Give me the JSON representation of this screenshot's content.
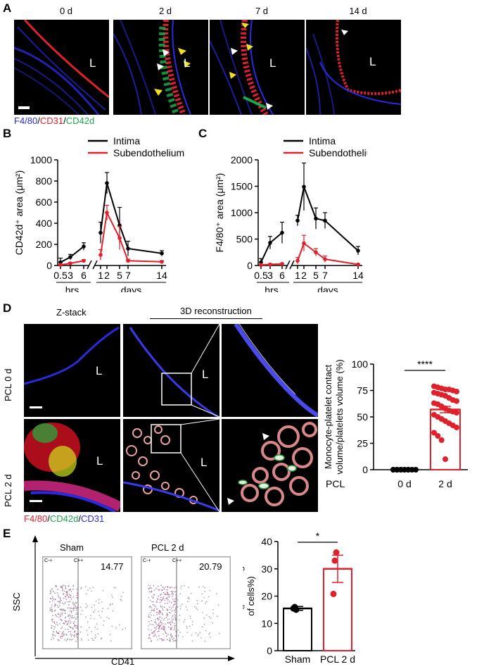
{
  "panels": {
    "A": "A",
    "B": "B",
    "C": "C",
    "D": "D",
    "E": "E"
  },
  "panelA": {
    "timepoints": [
      "0 d",
      "2 d",
      "7 d",
      "14 d"
    ],
    "lumen_label": "L",
    "stain": {
      "f480": "F4/80",
      "sep1": "/",
      "cd31": "CD31",
      "sep2": "/",
      "cd42d": "CD42d"
    },
    "colors": {
      "f480": "#2a2adf",
      "cd31": "#e0202a",
      "cd42d": "#1aa84a"
    }
  },
  "panelD": {
    "zstack_label": "Z-stack",
    "recon_label": "3D reconstruction",
    "row_labels": [
      "PCL 0 d",
      "PCL 2 d"
    ],
    "lumen_label": "L",
    "stain": {
      "f480": "F4/80",
      "sep1": "/",
      "cd42d": "CD42d",
      "sep2": "/",
      "cd31": "CD31"
    }
  },
  "panelE": {
    "flow_titles": [
      "Sham",
      "PCL 2 d"
    ],
    "gate_left": "C-+",
    "gate_right": "C++",
    "flow_values": [
      "14.77",
      "20.79"
    ],
    "y_axis": "SSC",
    "x_axis": "CD41"
  },
  "chart_data": [
    {
      "type": "line",
      "id": "B",
      "ylabel": "CD42d⁺ area (μm²)",
      "ylim": [
        0,
        1000
      ],
      "yticks": [
        0,
        200,
        400,
        600,
        800,
        1000
      ],
      "x_tick_labels_hrs": [
        "0.5",
        "3",
        "6"
      ],
      "x_tick_labels_days": [
        "1",
        "2",
        "5",
        "7",
        "14"
      ],
      "group_labels": [
        "hrs",
        "days"
      ],
      "legend": [
        "Intima",
        "Subendothelium"
      ],
      "legend_placement": "top-right",
      "series": [
        {
          "name": "Intima",
          "color": "#000000",
          "hrs": [
            {
              "x": "0.5",
              "y": 30,
              "err": 40
            },
            {
              "x": "3",
              "y": 80,
              "err": 25
            },
            {
              "x": "6",
              "y": 180,
              "err": 35
            }
          ],
          "days": [
            {
              "x": "1",
              "y": 310,
              "err": 100
            },
            {
              "x": "2",
              "y": 780,
              "err": 100
            },
            {
              "x": "5",
              "y": 380,
              "err": 170
            },
            {
              "x": "7",
              "y": 160,
              "err": 70
            },
            {
              "x": "14",
              "y": 115,
              "err": 25
            }
          ]
        },
        {
          "name": "Subendothelium",
          "color": "#e0202a",
          "hrs": [
            {
              "x": "0.5",
              "y": 5,
              "err": 5
            },
            {
              "x": "3",
              "y": 20,
              "err": 8
            },
            {
              "x": "6",
              "y": 45,
              "err": 10
            }
          ],
          "days": [
            {
              "x": "1",
              "y": 100,
              "err": 50
            },
            {
              "x": "2",
              "y": 500,
              "err": 70
            },
            {
              "x": "5",
              "y": 260,
              "err": 110
            },
            {
              "x": "7",
              "y": 45,
              "err": 15
            },
            {
              "x": "14",
              "y": 35,
              "err": 10
            }
          ]
        }
      ]
    },
    {
      "type": "line",
      "id": "C",
      "ylabel": "F4/80⁺ area (μm²)",
      "ylim": [
        0,
        2000
      ],
      "yticks": [
        0,
        500,
        1000,
        1500,
        2000
      ],
      "x_tick_labels_hrs": [
        "0.5",
        "3",
        "6"
      ],
      "x_tick_labels_days": [
        "1",
        "2",
        "5",
        "7",
        "14"
      ],
      "group_labels": [
        "hrs",
        "days"
      ],
      "legend": [
        "Intima",
        "Subendothelium"
      ],
      "legend_placement": "top-right",
      "series": [
        {
          "name": "Intima",
          "color": "#000000",
          "hrs": [
            {
              "x": "0.5",
              "y": 60,
              "err": 70
            },
            {
              "x": "3",
              "y": 430,
              "err": 120
            },
            {
              "x": "6",
              "y": 620,
              "err": 200
            }
          ],
          "days": [
            {
              "x": "1",
              "y": 850,
              "err": 100
            },
            {
              "x": "2",
              "y": 1490,
              "err": 450
            },
            {
              "x": "5",
              "y": 890,
              "err": 200
            },
            {
              "x": "7",
              "y": 850,
              "err": 150
            },
            {
              "x": "14",
              "y": 280,
              "err": 80
            }
          ]
        },
        {
          "name": "Subendothelium",
          "color": "#e0202a",
          "hrs": [
            {
              "x": "0.5",
              "y": 10,
              "err": 8
            },
            {
              "x": "3",
              "y": 20,
              "err": 10
            },
            {
              "x": "6",
              "y": 30,
              "err": 10
            }
          ],
          "days": [
            {
              "x": "1",
              "y": 90,
              "err": 60
            },
            {
              "x": "2",
              "y": 420,
              "err": 150
            },
            {
              "x": "5",
              "y": 250,
              "err": 70
            },
            {
              "x": "7",
              "y": 120,
              "err": 60
            },
            {
              "x": "14",
              "y": 20,
              "err": 10
            }
          ]
        }
      ]
    },
    {
      "type": "bar",
      "id": "D",
      "ylabel": "Monocyte-platelet contact\nvolume/platelets volume  (%)",
      "ylim": [
        0,
        100
      ],
      "yticks": [
        0,
        25,
        50,
        75,
        100
      ],
      "row_label": "PCL",
      "categories": [
        "0 d",
        "2 d"
      ],
      "values": [
        0,
        57
      ],
      "sem": [
        0,
        3
      ],
      "significance": "****",
      "colors": [
        "#000000",
        "#e0202a"
      ],
      "points": [
        [
          0,
          0,
          0,
          0,
          0,
          0,
          0,
          0,
          0,
          0,
          0,
          0
        ],
        [
          79,
          78,
          77,
          76,
          76,
          75,
          74,
          73,
          72,
          71,
          70,
          68,
          66,
          65,
          63,
          62,
          60,
          58,
          56,
          55,
          54,
          52,
          50,
          48,
          46,
          44,
          42,
          40,
          35,
          32,
          28,
          10
        ]
      ]
    },
    {
      "type": "bar",
      "id": "E",
      "ylabel": "MPA (percentage\nof cells%)",
      "ylim": [
        0,
        40
      ],
      "yticks": [
        0,
        10,
        20,
        30,
        40
      ],
      "categories": [
        "Sham",
        "PCL 2 d"
      ],
      "values": [
        15.5,
        30
      ],
      "sem": [
        0.7,
        5
      ],
      "significance": "*",
      "colors": [
        "#000000",
        "#e0202a"
      ],
      "points": [
        [
          15.5,
          16,
          15
        ],
        [
          20.8,
          33,
          36
        ]
      ]
    }
  ]
}
